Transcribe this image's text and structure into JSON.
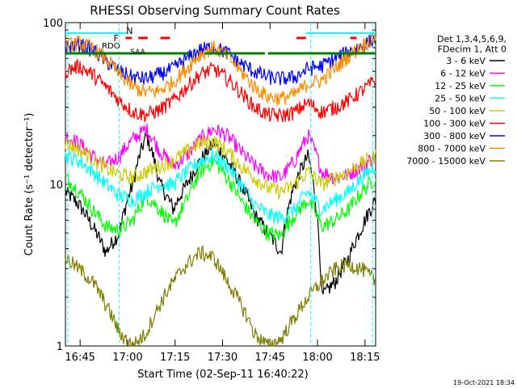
{
  "chart_data": {
    "type": "line",
    "title": "RHESSI Observing Summary Count Rates",
    "xlabel": "Start Time (02-Sep-11 16:40:22)",
    "ylabel": "Count Rate (s⁻¹ detector⁻¹)",
    "yscale": "log",
    "ylim": [
      1,
      100
    ],
    "xlim_minutes_after_start": [
      0,
      98
    ],
    "x_ticks": [
      "16:45",
      "17:00",
      "17:15",
      "17:30",
      "17:45",
      "18:00",
      "18:15"
    ],
    "y_ticks": [
      "1",
      "10",
      "100"
    ],
    "legend_header": [
      "Det 1,3,4,5,6,9,",
      "FDecim 1, Att 0"
    ],
    "legend_position": "right",
    "footer_date": "19-Oct-2021 18:34",
    "markers": {
      "night_label": "N",
      "flare_label": "F",
      "rdo_label": "RDO",
      "saa_label": "SAA"
    },
    "series": [
      {
        "name": "3 - 6 keV",
        "color": "#000000",
        "y": [
          9.0,
          7.5,
          5.5,
          3.8,
          5.0,
          10.0,
          20.0,
          10.0,
          7.0,
          10.0,
          14.0,
          18.0,
          14.0,
          10.0,
          6.5,
          5.0,
          3.8,
          10.0,
          15.0,
          2.0,
          2.5,
          3.5,
          5.5,
          8.0
        ]
      },
      {
        "name": "6 - 12 keV",
        "color": "#ff00ff",
        "y": [
          20.0,
          18.0,
          15.0,
          13.0,
          15.0,
          19.0,
          22.0,
          16.0,
          13.0,
          15.0,
          19.0,
          22.0,
          20.0,
          16.0,
          13.0,
          11.5,
          11.0,
          14.0,
          20.0,
          12.0,
          11.0,
          11.5,
          13.0,
          15.0
        ]
      },
      {
        "name": "12 - 25 keV",
        "color": "#00ff00",
        "y": [
          11.0,
          9.0,
          7.0,
          5.5,
          5.2,
          6.0,
          8.5,
          7.0,
          5.5,
          8.0,
          12.0,
          14.0,
          11.0,
          8.0,
          6.0,
          5.0,
          4.8,
          6.5,
          8.0,
          5.5,
          6.0,
          7.0,
          9.0,
          11.0
        ]
      },
      {
        "name": "25 - 50 keV",
        "color": "#00ffff",
        "y": [
          15.0,
          14.0,
          12.0,
          10.0,
          8.5,
          8.0,
          9.0,
          10.0,
          10.0,
          12.0,
          14.0,
          15.0,
          13.0,
          10.0,
          7.5,
          6.5,
          6.2,
          7.0,
          9.0,
          7.0,
          8.0,
          9.0,
          11.0,
          13.0
        ]
      },
      {
        "name": "50 - 100 keV",
        "color": "#cccc00",
        "y": [
          18.0,
          16.5,
          14.5,
          12.5,
          11.5,
          11.0,
          12.0,
          13.0,
          14.0,
          16.0,
          18.0,
          18.5,
          16.0,
          13.0,
          11.0,
          9.5,
          9.0,
          10.0,
          12.0,
          10.0,
          11.0,
          12.0,
          13.5,
          15.0
        ]
      },
      {
        "name": "100 - 300 keV",
        "color": "#ff0000",
        "y": [
          50.0,
          54.0,
          48.0,
          40.0,
          33.0,
          28.0,
          27.0,
          29.0,
          33.0,
          40.0,
          48.0,
          52.0,
          45.0,
          37.0,
          30.0,
          27.0,
          26.5,
          28.0,
          32.0,
          28.0,
          30.0,
          33.0,
          38.0,
          44.0
        ]
      },
      {
        "name": "300 - 800 keV",
        "color": "#0000ff",
        "y": [
          70.0,
          74.0,
          68.0,
          58.0,
          50.0,
          46.0,
          45.0,
          48.0,
          52.0,
          60.0,
          68.0,
          71.0,
          65.0,
          56.0,
          50.0,
          46.0,
          45.0,
          46.0,
          52.0,
          54.0,
          60.0,
          66.0,
          72.0,
          80.0
        ]
      },
      {
        "name": "800 - 7000 keV",
        "color": "#ff8c00",
        "y": [
          72.0,
          75.0,
          70.0,
          60.0,
          48.0,
          40.0,
          37.0,
          38.0,
          43.0,
          52.0,
          64.0,
          70.0,
          62.0,
          50.0,
          40.0,
          35.0,
          34.0,
          36.0,
          42.0,
          44.0,
          52.0,
          62.0,
          72.0,
          82.0
        ]
      },
      {
        "name": "7000 - 15000 keV",
        "color": "#808000",
        "y": [
          3.5,
          3.0,
          2.5,
          1.8,
          1.2,
          1.0,
          1.2,
          1.8,
          2.5,
          3.2,
          3.8,
          3.5,
          2.5,
          1.8,
          1.2,
          1.0,
          1.1,
          1.5,
          2.0,
          2.5,
          3.0,
          3.2,
          3.0,
          2.5
        ]
      }
    ]
  }
}
